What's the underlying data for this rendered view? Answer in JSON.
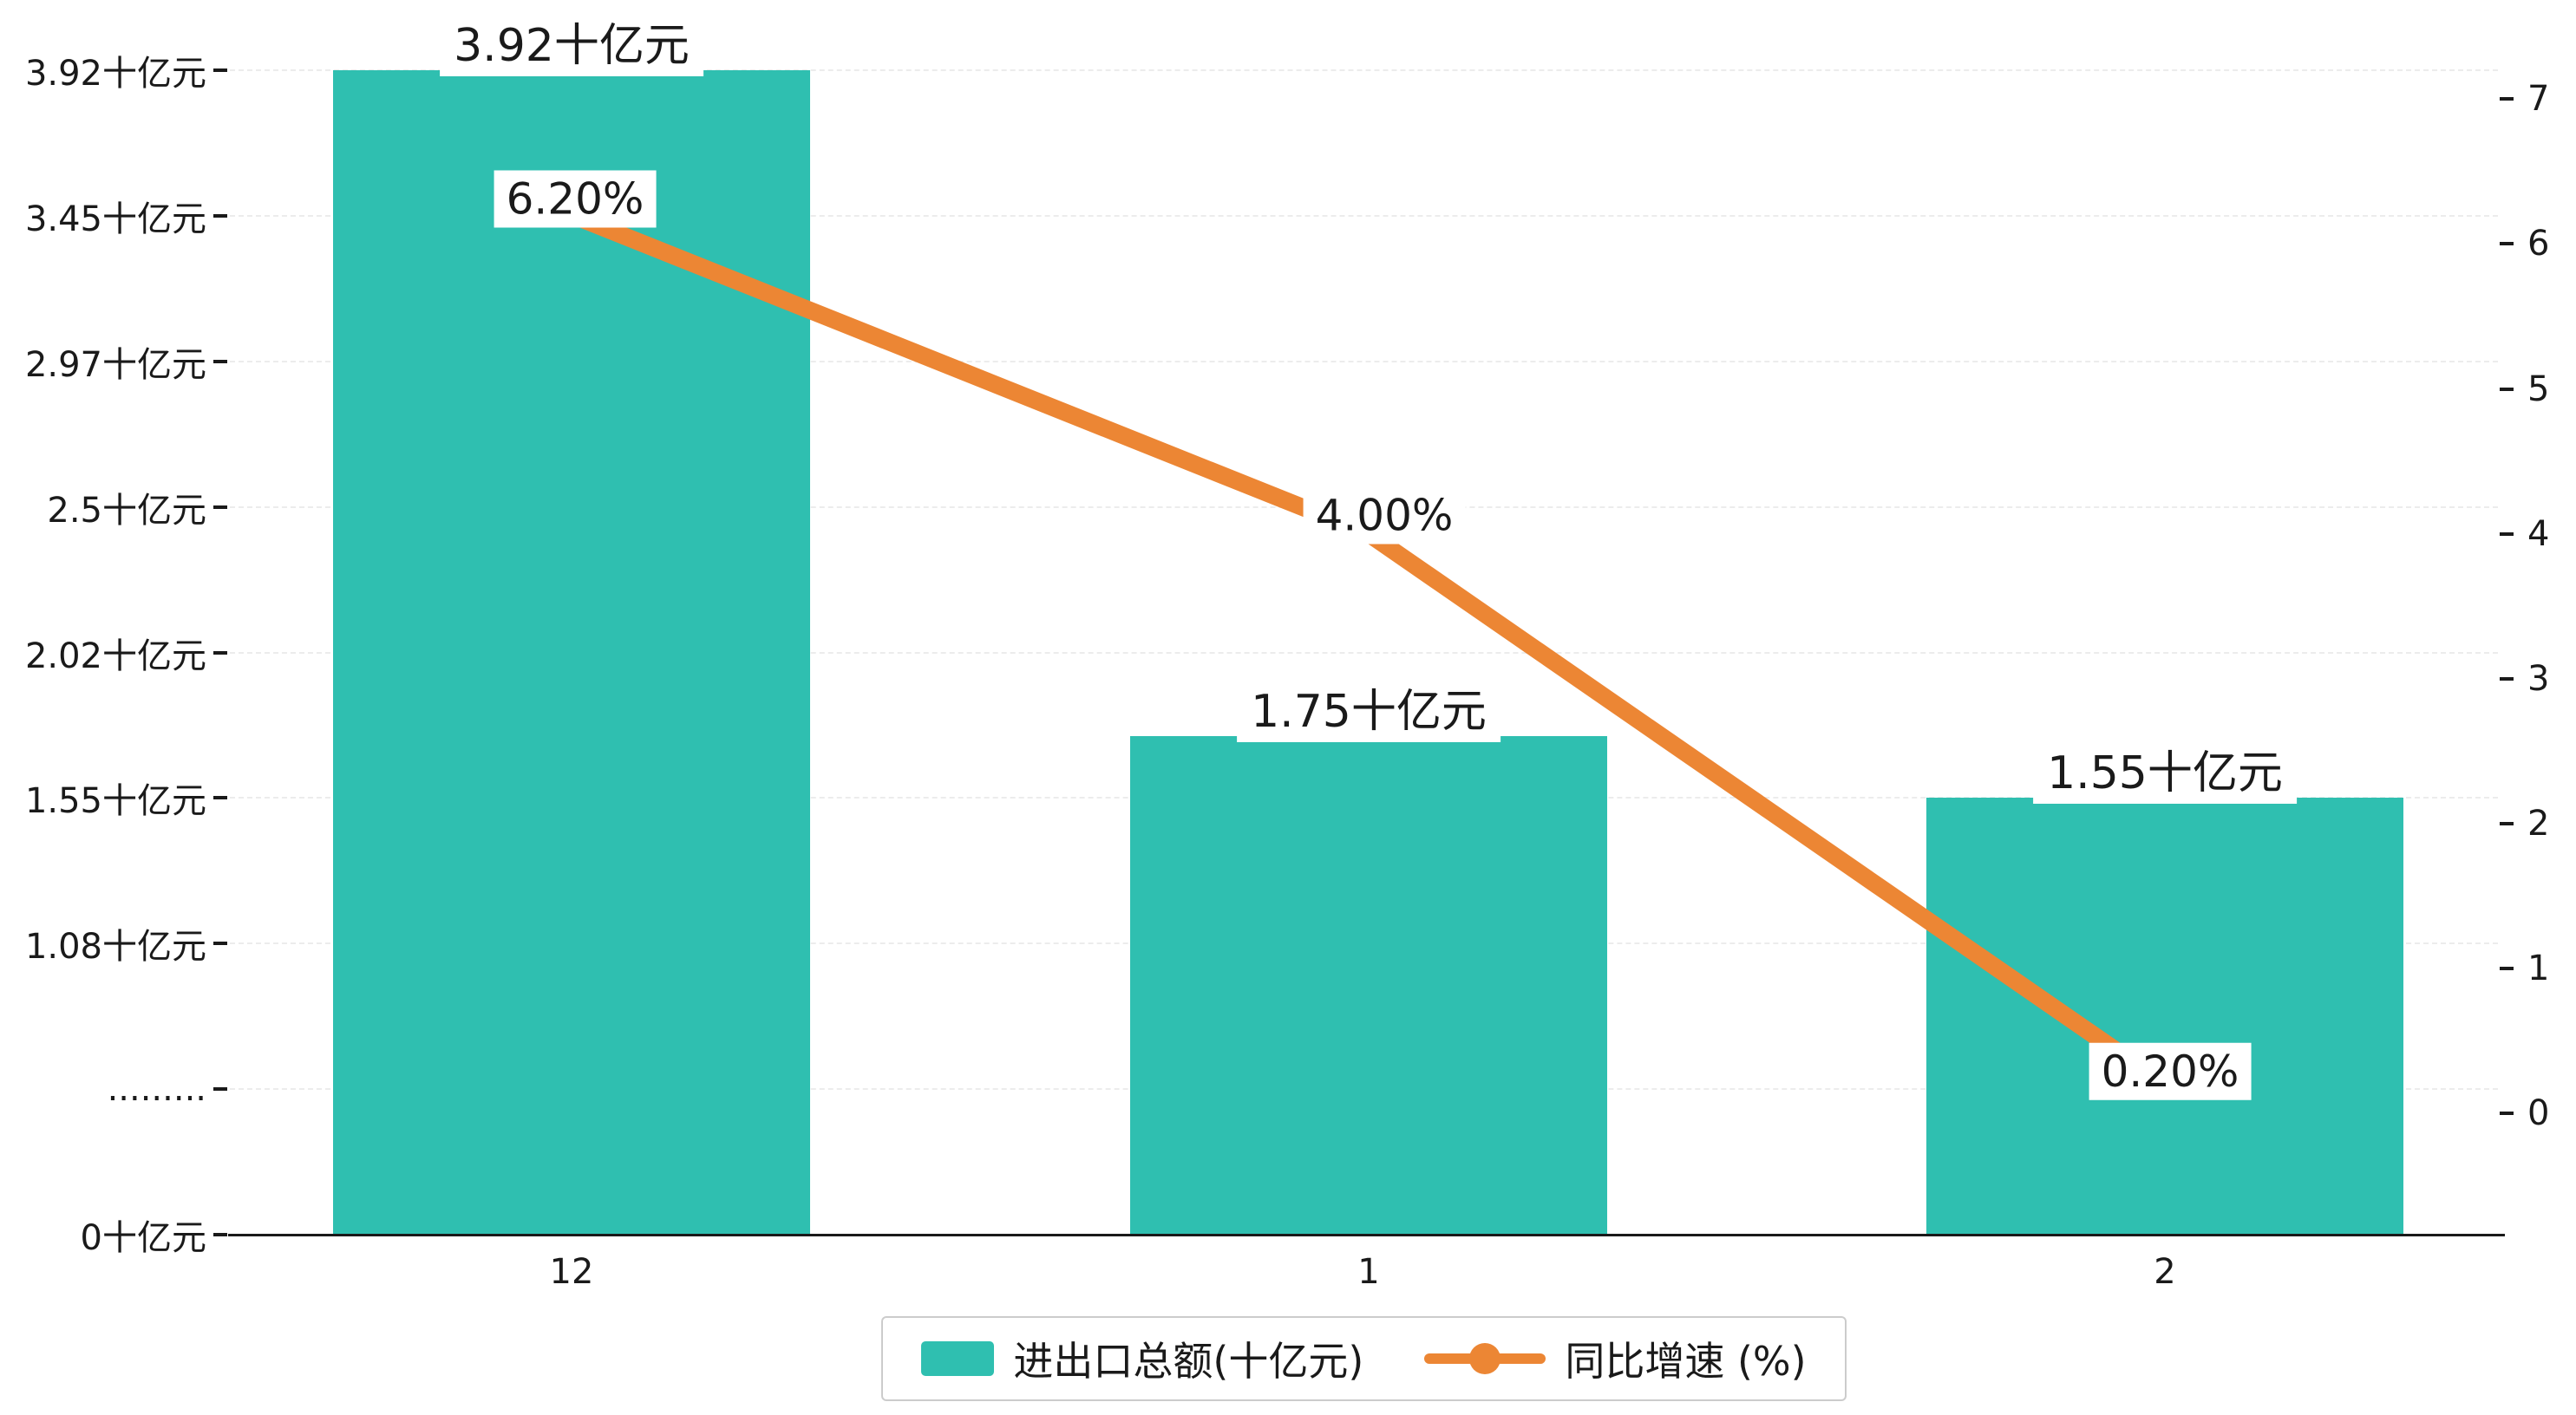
{
  "chart_data": {
    "type": "bar+line",
    "title": "",
    "categories": [
      "12",
      "1",
      "2"
    ],
    "series": [
      {
        "name": "进出口总额(十亿元)",
        "type": "bar",
        "values": [
          3.92,
          1.75,
          1.55
        ],
        "labels": [
          "3.92十亿元",
          "1.75十亿元",
          "1.55十亿元"
        ],
        "color": "#2fbfb0"
      },
      {
        "name": "同比增速 (%)",
        "type": "line",
        "values": [
          6.2,
          4.0,
          0.2
        ],
        "labels": [
          "6.20%",
          "4.00%",
          "0.20%"
        ],
        "color": "#ec8634"
      }
    ],
    "left_axis": {
      "tick_labels": [
        "3.92十亿元",
        "3.45十亿元",
        "2.97十亿元",
        "2.5十亿元",
        "2.02十亿元",
        "1.55十亿元",
        "1.08十亿元",
        ".........",
        "0十亿元"
      ],
      "tick_values": [
        3.92,
        3.45,
        2.97,
        2.5,
        2.02,
        1.55,
        1.08,
        0.605,
        0
      ]
    },
    "right_axis": {
      "tick_labels": [
        "7",
        "6",
        "5",
        "4",
        "3",
        "2",
        "1",
        "0"
      ],
      "tick_values": [
        7,
        6,
        5,
        4,
        3,
        2,
        1,
        0
      ],
      "range": [
        0,
        7
      ]
    },
    "legend": [
      {
        "label": "进出口总额(十亿元)",
        "color": "#2fbfb0"
      },
      {
        "label": "同比增速 (%)",
        "color": "#ec8634"
      }
    ],
    "grid": true,
    "background": "#ffffff",
    "legend_position": "bottom-center"
  }
}
